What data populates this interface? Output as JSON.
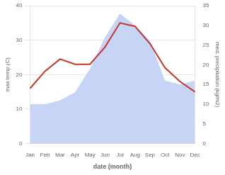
{
  "chart_data": {
    "type": "line",
    "xlabel": "date (month)",
    "ylabel": "max temp (C)",
    "y2label": "med. precipitation (kg/m2)",
    "categories": [
      "Jan",
      "Feb",
      "Mar",
      "Apr",
      "May",
      "Jun",
      "Jul",
      "Aug",
      "Sep",
      "Oct",
      "Nov",
      "Dec"
    ],
    "series": [
      {
        "type": "line",
        "color": "#c0392b",
        "values": [
          16,
          21,
          24.5,
          23,
          23,
          28,
          35,
          34,
          29,
          22,
          18,
          15
        ]
      },
      {
        "type": "area",
        "color": "#c8d4f5",
        "axis": "y2",
        "values": [
          10,
          10,
          11,
          13,
          19,
          27,
          33,
          30,
          26,
          16,
          15,
          16
        ]
      }
    ],
    "ylim": [
      0,
      40
    ],
    "yticks": [
      0,
      10,
      20,
      30,
      40
    ],
    "y2lim": [
      0,
      35
    ],
    "y2ticks": [
      0,
      5,
      10,
      15,
      20,
      25,
      30,
      35
    ],
    "grid": true
  }
}
